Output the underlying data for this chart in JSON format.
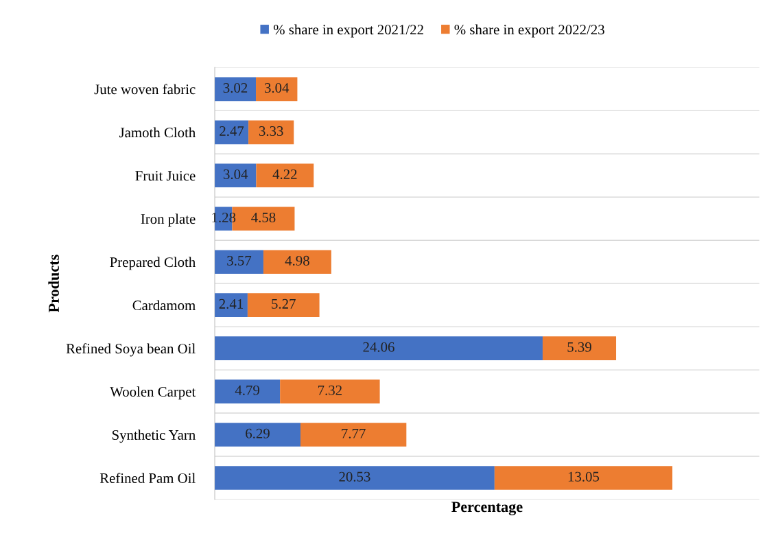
{
  "chart_data": {
    "type": "bar",
    "orientation": "horizontal",
    "stacked": true,
    "xlabel": "Percentage",
    "ylabel": "Products",
    "categories": [
      "Jute woven fabric",
      "Jamoth Cloth",
      "Fruit Juice",
      "Iron plate",
      "Prepared Cloth",
      "Cardamom",
      "Refined Soya bean Oil",
      "Woolen Carpet",
      "Synthetic Yarn",
      "Refined Pam Oil"
    ],
    "series": [
      {
        "name": "% share in export 2021/22",
        "color": "#4472c4",
        "values": [
          3.02,
          2.47,
          3.04,
          1.28,
          3.57,
          2.41,
          24.06,
          4.79,
          6.29,
          20.53
        ]
      },
      {
        "name": "% share in export 2022/23",
        "color": "#ed7d31",
        "values": [
          3.04,
          3.33,
          4.22,
          4.58,
          4.98,
          5.27,
          5.39,
          7.32,
          7.77,
          13.05
        ]
      }
    ],
    "data_labels": true,
    "legend": "top",
    "grid": "y",
    "tick_labels": "y"
  }
}
